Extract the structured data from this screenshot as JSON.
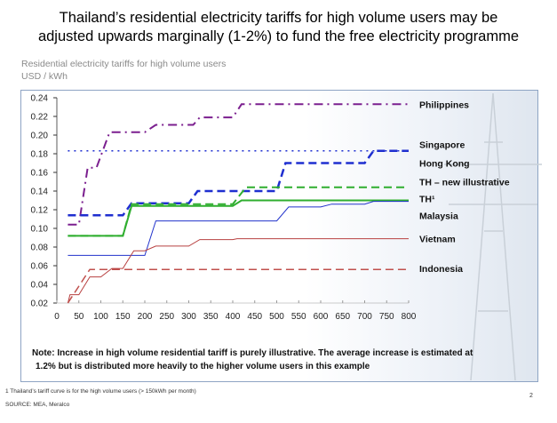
{
  "title_line1": "Thailand’s residential electricity tariffs for high volume users may be",
  "title_line2": "adjusted upwards marginally (1-2%) to fund the free electricity programme",
  "note_line1": "Note: Increase in high volume residential tariff is purely illustrative. The average increase is estimated at",
  "note_line2": "1.2% but is distributed more heavily to the higher volume users in this example",
  "footnote": "1 Thailand’s tariff curve is for the high volume users (> 150kWh per month)",
  "source": "SOURCE: MEA, Meralco",
  "page_number": "2",
  "chart_data": {
    "type": "line",
    "title": "Residential electricity tariffs for high volume users",
    "ylabel": "USD / kWh",
    "xlabel": "",
    "xlim": [
      0,
      800
    ],
    "ylim": [
      0.02,
      0.24
    ],
    "x_ticks": [
      "0",
      "50",
      "100",
      "150",
      "200",
      "250",
      "300",
      "350",
      "400",
      "450",
      "500",
      "550",
      "600",
      "650",
      "700",
      "750",
      "800"
    ],
    "y_ticks": [
      "0.02",
      "0.04",
      "0.06",
      "0.08",
      "0.10",
      "0.12",
      "0.14",
      "0.16",
      "0.18",
      "0.20",
      "0.22",
      "0.24"
    ],
    "grid": false,
    "legend": "labels at right end of lines",
    "series": [
      {
        "name": "Philippines",
        "color": "#7b1f8f",
        "dash": "dashdot",
        "width": 2,
        "label_y": 0.233,
        "points": [
          [
            25,
            0.104
          ],
          [
            50,
            0.104
          ],
          [
            70,
            0.165
          ],
          [
            90,
            0.165
          ],
          [
            120,
            0.203
          ],
          [
            200,
            0.203
          ],
          [
            225,
            0.211
          ],
          [
            310,
            0.211
          ],
          [
            325,
            0.219
          ],
          [
            400,
            0.219
          ],
          [
            420,
            0.233
          ],
          [
            800,
            0.233
          ]
        ]
      },
      {
        "name": "Singapore",
        "color": "#1f2fd0",
        "dash": "dot",
        "width": 1.5,
        "label_y": 0.19,
        "points": [
          [
            25,
            0.183
          ],
          [
            800,
            0.183
          ]
        ]
      },
      {
        "name": "Hong Kong",
        "color": "#1f2fd0",
        "dash": "dash",
        "width": 2.5,
        "label_y": 0.17,
        "points": [
          [
            25,
            0.114
          ],
          [
            150,
            0.114
          ],
          [
            170,
            0.127
          ],
          [
            300,
            0.127
          ],
          [
            320,
            0.14
          ],
          [
            500,
            0.14
          ],
          [
            520,
            0.17
          ],
          [
            700,
            0.17
          ],
          [
            720,
            0.183
          ],
          [
            800,
            0.183
          ]
        ]
      },
      {
        "name": "TH – new illustrative",
        "color": "#2fae2f",
        "dash": "dash",
        "width": 2,
        "label_y": 0.15,
        "points": [
          [
            25,
            0.092
          ],
          [
            150,
            0.092
          ],
          [
            170,
            0.126
          ],
          [
            400,
            0.126
          ],
          [
            430,
            0.144
          ],
          [
            800,
            0.144
          ]
        ]
      },
      {
        "name": "TH¹",
        "color": "#2fae2f",
        "dash": "solid",
        "width": 2,
        "label_y": 0.132,
        "points": [
          [
            25,
            0.092
          ],
          [
            150,
            0.092
          ],
          [
            170,
            0.124
          ],
          [
            400,
            0.124
          ],
          [
            420,
            0.13
          ],
          [
            800,
            0.13
          ]
        ]
      },
      {
        "name": "Malaysia",
        "color": "#2233cc",
        "dash": "solid",
        "width": 1,
        "label_y": 0.114,
        "points": [
          [
            25,
            0.071
          ],
          [
            200,
            0.071
          ],
          [
            225,
            0.108
          ],
          [
            500,
            0.108
          ],
          [
            527,
            0.123
          ],
          [
            600,
            0.123
          ],
          [
            625,
            0.126
          ],
          [
            700,
            0.126
          ],
          [
            720,
            0.129
          ],
          [
            800,
            0.129
          ]
        ]
      },
      {
        "name": "Vietnam",
        "color": "#b84040",
        "dash": "solid",
        "width": 1,
        "label_y": 0.089,
        "points": [
          [
            25,
            0.02
          ],
          [
            30,
            0.029
          ],
          [
            50,
            0.029
          ],
          [
            75,
            0.048
          ],
          [
            100,
            0.048
          ],
          [
            125,
            0.057
          ],
          [
            150,
            0.057
          ],
          [
            175,
            0.076
          ],
          [
            200,
            0.076
          ],
          [
            225,
            0.081
          ],
          [
            300,
            0.081
          ],
          [
            325,
            0.088
          ],
          [
            400,
            0.088
          ],
          [
            410,
            0.089
          ],
          [
            800,
            0.089
          ]
        ]
      },
      {
        "name": "Indonesia",
        "color": "#c0504d",
        "dash": "dash",
        "width": 1.5,
        "label_y": 0.057,
        "points": [
          [
            25,
            0.02
          ],
          [
            75,
            0.056
          ],
          [
            800,
            0.056
          ]
        ]
      }
    ]
  }
}
